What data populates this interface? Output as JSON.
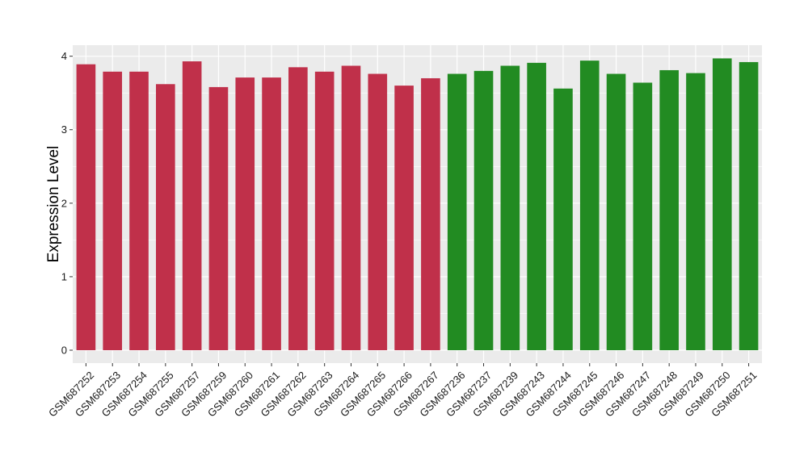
{
  "chart_data": {
    "type": "bar",
    "title": "",
    "xlabel": "",
    "ylabel": "Expression Level",
    "ylim": [
      0,
      4.15
    ],
    "yticks": [
      0,
      1,
      2,
      3,
      4
    ],
    "grid": true,
    "legend": "none",
    "colors": {
      "group1": "#c0304a",
      "group2": "#228b22",
      "panel": "#ebebeb",
      "grid": "#ffffff"
    },
    "categories": [
      "GSM687252",
      "GSM687253",
      "GSM687254",
      "GSM687255",
      "GSM687257",
      "GSM687259",
      "GSM687260",
      "GSM687261",
      "GSM687262",
      "GSM687263",
      "GSM687264",
      "GSM687265",
      "GSM687266",
      "GSM687267",
      "GSM687236",
      "GSM687237",
      "GSM687239",
      "GSM687243",
      "GSM687244",
      "GSM687245",
      "GSM687246",
      "GSM687247",
      "GSM687248",
      "GSM687249",
      "GSM687250",
      "GSM687251"
    ],
    "values": [
      3.89,
      3.79,
      3.79,
      3.62,
      3.93,
      3.58,
      3.71,
      3.71,
      3.85,
      3.79,
      3.87,
      3.76,
      3.6,
      3.7,
      3.76,
      3.8,
      3.87,
      3.91,
      3.56,
      3.94,
      3.76,
      3.64,
      3.81,
      3.77,
      3.97,
      3.92
    ],
    "groups": [
      "group1",
      "group1",
      "group1",
      "group1",
      "group1",
      "group1",
      "group1",
      "group1",
      "group1",
      "group1",
      "group1",
      "group1",
      "group1",
      "group1",
      "group2",
      "group2",
      "group2",
      "group2",
      "group2",
      "group2",
      "group2",
      "group2",
      "group2",
      "group2",
      "group2",
      "group2"
    ]
  }
}
